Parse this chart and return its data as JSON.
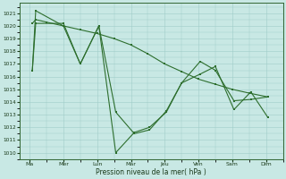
{
  "background_color": "#c8e8e4",
  "grid_color": "#a0ccc8",
  "line_color": "#2d6e2d",
  "xlabel": "Pression niveau de la mer( hPa )",
  "ylim": [
    1009.5,
    1021.8
  ],
  "yticks": [
    1010,
    1011,
    1012,
    1013,
    1014,
    1015,
    1016,
    1017,
    1018,
    1019,
    1020,
    1021
  ],
  "xtick_labels": [
    "Ma",
    "Mer",
    "Lun",
    "Mar",
    "Jeu",
    "Ven",
    "Sam",
    "Dim"
  ],
  "xtick_positions": [
    0,
    1,
    2,
    3,
    4,
    5,
    6,
    7
  ],
  "xlim": [
    -0.3,
    7.5
  ],
  "line_a_x": [
    0.08,
    0.18,
    1.0,
    1.5,
    2.05,
    2.55,
    3.1,
    3.55,
    4.05,
    4.5,
    5.05,
    5.5,
    6.05,
    6.55,
    7.05
  ],
  "line_a_y": [
    1016.5,
    1020.2,
    1020.2,
    1017.0,
    1020.0,
    1013.2,
    1011.5,
    1011.8,
    1013.3,
    1015.5,
    1017.2,
    1016.5,
    1014.1,
    1014.2,
    1014.4
  ],
  "line_b_x": [
    0.08,
    0.18,
    1.0,
    1.5,
    2.05,
    2.55,
    3.1,
    3.55,
    4.05,
    4.5,
    5.05,
    5.5,
    6.05,
    6.55,
    7.05
  ],
  "line_b_y": [
    1016.5,
    1021.2,
    1020.0,
    1017.0,
    1020.0,
    1010.0,
    1011.6,
    1012.0,
    1013.2,
    1015.5,
    1016.2,
    1016.8,
    1013.4,
    1014.8,
    1012.8
  ],
  "line_c_x": [
    0.08,
    0.18,
    0.5,
    1.0,
    1.5,
    2.0,
    2.5,
    3.0,
    3.5,
    4.0,
    4.5,
    5.0,
    5.5,
    6.0,
    6.5,
    7.05
  ],
  "line_c_y": [
    1020.2,
    1020.5,
    1020.3,
    1020.0,
    1019.7,
    1019.4,
    1019.0,
    1018.5,
    1017.8,
    1017.0,
    1016.4,
    1015.8,
    1015.4,
    1015.0,
    1014.7,
    1014.4
  ]
}
